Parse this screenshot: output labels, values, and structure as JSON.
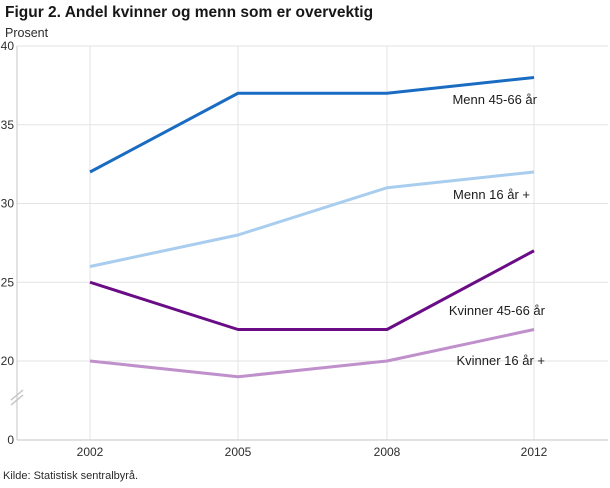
{
  "source": "Kilde: Statistisk sentralbyrå.",
  "chart_data": {
    "type": "line",
    "title": "Figur 2. Andel kvinner og menn som er overvektig",
    "ylabel": "Prosent",
    "xlabel": "",
    "categories": [
      "2002",
      "2005",
      "2008",
      "2012"
    ],
    "series": [
      {
        "name": "Menn 45-66 år",
        "values": [
          32,
          37,
          37,
          38
        ],
        "color": "#1a6cc2"
      },
      {
        "name": "Menn 16 år +",
        "values": [
          26,
          28,
          31,
          32
        ],
        "color": "#a9cdee"
      },
      {
        "name": "Kvinner 45-66 år",
        "values": [
          25,
          22,
          22,
          27
        ],
        "color": "#6a0c86"
      },
      {
        "name": "Kvinner 16 år +",
        "values": [
          20,
          19,
          20,
          22
        ],
        "color": "#bf90cc"
      }
    ],
    "y_ticks": [
      0,
      20,
      25,
      30,
      35,
      40
    ],
    "ylim": [
      0,
      40
    ],
    "axis_break_between": [
      0,
      20
    ],
    "grid": true,
    "legend_position": "inline-right-of-lines",
    "colors": {
      "grid": "#e3e3e3",
      "axis": "#c6c6c6",
      "tick_text": "#2e2e2e",
      "label_text": "#1c1c1c"
    }
  }
}
